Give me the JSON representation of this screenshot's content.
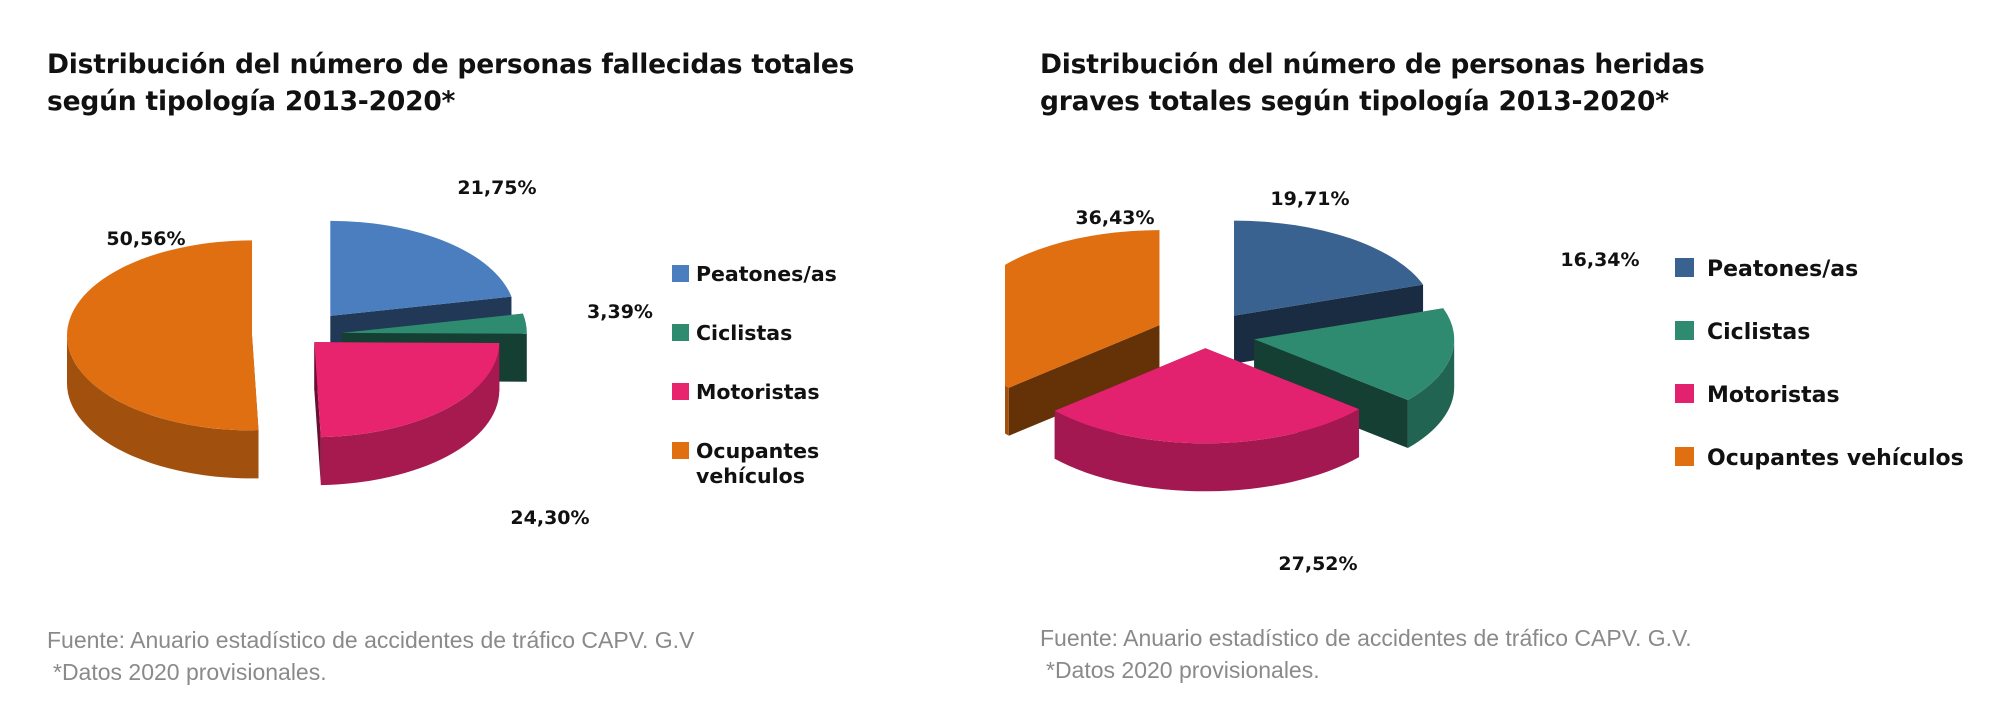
{
  "chart_data": [
    {
      "type": "pie",
      "title": "Distribución del número de personas fallecidas totales según tipología 2013-2020*",
      "title_lines": [
        "Distribución del número de personas fallecidas totales",
        "según tipología 2013-2020*"
      ],
      "categories": [
        "Peatones/as",
        "Ciclistas",
        "Motoristas",
        "Ocupantes vehículos"
      ],
      "values": [
        21.75,
        3.39,
        24.3,
        50.56
      ],
      "value_labels": [
        "21,75%",
        "3,39%",
        "24,30%",
        "50,56%"
      ],
      "legend_lines": [
        [
          "Peatones/as"
        ],
        [
          "Ciclistas"
        ],
        [
          "Motoristas"
        ],
        [
          "Ocupantes",
          "vehículos"
        ]
      ],
      "colors": [
        "#4a7ebf",
        "#2e8b70",
        "#e8246f",
        "#e06f12"
      ],
      "style": "3d-exploded",
      "legend_position": "right",
      "source_lines": [
        "Fuente: Anuario estadístico de accidentes de tráfico CAPV. G.V",
        "*Datos 2020 provisionales."
      ]
    },
    {
      "type": "pie",
      "title": "Distribución del número de personas heridas graves totales según tipología 2013-2020*",
      "title_lines": [
        "Distribución del número de personas heridas",
        "graves totales según tipología 2013-2020*"
      ],
      "categories": [
        "Peatones/as",
        "Ciclistas",
        "Motoristas",
        "Ocupantes vehículos"
      ],
      "values": [
        19.71,
        16.34,
        27.52,
        36.43
      ],
      "value_labels": [
        "19,71%",
        "16,34%",
        "27,52%",
        "36,43%"
      ],
      "legend_lines": [
        [
          "Peatones/as"
        ],
        [
          "Ciclistas"
        ],
        [
          "Motoristas"
        ],
        [
          "Ocupantes vehículos"
        ]
      ],
      "colors": [
        "#3a6290",
        "#2e8b70",
        "#e2226f",
        "#e06f12"
      ],
      "style": "3d-exploded",
      "legend_position": "right",
      "source_lines": [
        "Fuente: Anuario estadístico de accidentes de tráfico CAPV. G.V.",
        "*Datos 2020 provisionales."
      ]
    }
  ]
}
